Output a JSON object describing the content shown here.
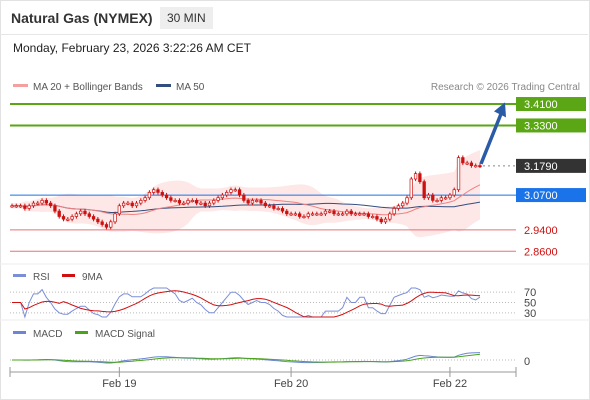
{
  "header": {
    "title": "Natural Gas (NYMEX)",
    "timeframe": "30 MIN",
    "datetime": "Monday, February 23, 2026 3:22:26 AM CET"
  },
  "legend": {
    "bollinger": "MA 20 + Bollinger Bands",
    "ma50": "MA 50",
    "credit": "Research © 2026 Trading Central",
    "rsi": "RSI",
    "rsi_ma": "9MA",
    "macd": "MACD",
    "macd_signal": "MACD Signal"
  },
  "colors": {
    "resistance": "#5aa614",
    "support": "#e8707a",
    "pivot": "#1a73e8",
    "last_price": "#333333",
    "candle": "#cc1111",
    "bollinger_fill": "#fde3e3",
    "ma20": "#f08080",
    "ma50": "#334e7e",
    "rsi_line": "#7b8fd8",
    "rsi_ma_line": "#d01010",
    "macd_line": "#6b86d6",
    "macd_signal_line": "#4aa41a",
    "arrow": "#2a5ba6"
  },
  "chart_data": {
    "type": "candlestick",
    "x_ticks": [
      "Feb 19",
      "Feb 20",
      "Feb 22"
    ],
    "price_range": [
      2.82,
      3.44
    ],
    "levels": [
      {
        "label": "3.4100",
        "value": 3.41,
        "kind": "resistance"
      },
      {
        "label": "3.3300",
        "value": 3.33,
        "kind": "resistance"
      },
      {
        "label": "3.1790",
        "value": 3.179,
        "kind": "last"
      },
      {
        "label": "3.0700",
        "value": 3.07,
        "kind": "pivot"
      },
      {
        "label": "2.9400",
        "value": 2.94,
        "kind": "support"
      },
      {
        "label": "2.8600",
        "value": 2.86,
        "kind": "support"
      }
    ],
    "closes": [
      3.03,
      3.03,
      3.03,
      3.02,
      3.03,
      3.04,
      3.04,
      3.05,
      3.04,
      3.03,
      3.01,
      2.99,
      2.98,
      2.98,
      2.99,
      3.0,
      3.01,
      3.0,
      2.99,
      2.98,
      2.97,
      2.96,
      2.95,
      2.97,
      3.0,
      3.03,
      3.04,
      3.04,
      3.03,
      3.04,
      3.05,
      3.06,
      3.08,
      3.09,
      3.08,
      3.07,
      3.06,
      3.05,
      3.05,
      3.04,
      3.04,
      3.05,
      3.05,
      3.04,
      3.04,
      3.03,
      3.04,
      3.05,
      3.06,
      3.07,
      3.08,
      3.09,
      3.09,
      3.07,
      3.05,
      3.04,
      3.05,
      3.05,
      3.04,
      3.03,
      3.03,
      3.02,
      3.02,
      3.01,
      3.0,
      3.0,
      3.0,
      2.99,
      2.99,
      3.0,
      3.0,
      3.0,
      3.0,
      3.01,
      3.01,
      3.0,
      3.0,
      3.0,
      3.01,
      3.0,
      3.0,
      3.0,
      3.0,
      2.99,
      2.99,
      2.98,
      2.97,
      2.98,
      3.0,
      3.02,
      3.03,
      3.04,
      3.06,
      3.13,
      3.15,
      3.12,
      3.06,
      3.07,
      3.05,
      3.05,
      3.06,
      3.06,
      3.07,
      3.09,
      3.21,
      3.19,
      3.19,
      3.18,
      3.18,
      3.179
    ],
    "rsi": {
      "levels": [
        70,
        50,
        30
      ]
    },
    "macd": {
      "levels": [
        0
      ]
    }
  }
}
